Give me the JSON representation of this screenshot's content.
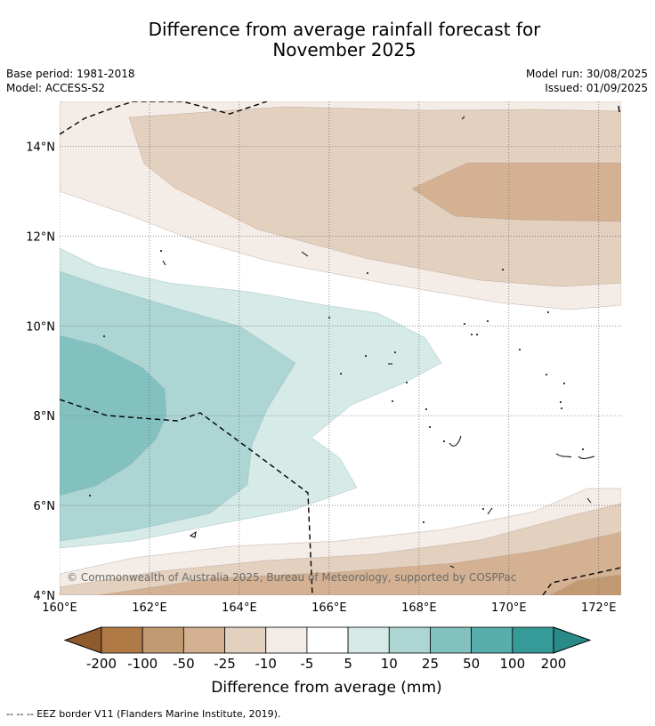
{
  "title": {
    "line1": "Difference from average rainfall forecast for",
    "line2": "November 2025"
  },
  "meta_left": {
    "base_period": "Base period: 1981-2018",
    "model": "Model: ACCESS-S2"
  },
  "meta_right": {
    "model_run": "Model run: 30/08/2025",
    "issued": "Issued: 01/09/2025"
  },
  "map": {
    "lon_range": [
      160,
      172.5
    ],
    "lat_range": [
      4,
      15
    ],
    "lon_ticks": [
      "160°E",
      "162°E",
      "164°E",
      "166°E",
      "168°E",
      "170°E",
      "172°E"
    ],
    "lat_ticks": [
      "4°N",
      "6°N",
      "8°N",
      "10°N",
      "12°N",
      "14°N"
    ],
    "gridlines": "dotted",
    "copyright": "© Commonwealth of Australia 2025, Bureau of Meteorology, supported by COSPPac"
  },
  "legend": {
    "tick_labels": [
      "-200",
      "-100",
      "-50",
      "-25",
      "-10",
      "-5",
      "5",
      "10",
      "25",
      "50",
      "100",
      "200"
    ],
    "colors": [
      "#8f5a2c",
      "#b07a46",
      "#c29a72",
      "#d3b192",
      "#e3d0bf",
      "#f4ece6",
      "#ffffff",
      "#d6eae8",
      "#acd5d4",
      "#83c1c0",
      "#58aead",
      "#359a98",
      "#2a8a88"
    ],
    "label": "Difference from average (mm)"
  },
  "footer": {
    "note": "-- -- -- EEZ border V11 (Flanders Marine Institute, 2019)."
  }
}
